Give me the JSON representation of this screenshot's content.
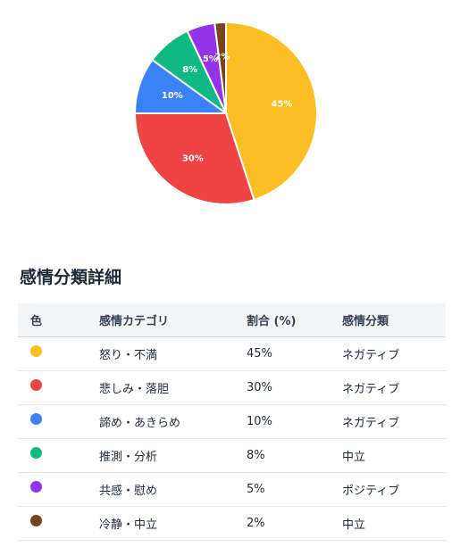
{
  "chart_data": {
    "type": "pie",
    "categories": [
      "怒り・不満",
      "悲しみ・落胆",
      "諦め・あきらめ",
      "推測・分析",
      "共感・慰め",
      "冷静・中立"
    ],
    "values": [
      45,
      30,
      10,
      8,
      5,
      2
    ],
    "labels": [
      "45%",
      "30%",
      "10%",
      "8%",
      "5%",
      "2%"
    ],
    "colors": [
      "#FBBF24",
      "#EF4444",
      "#3B82F6",
      "#10B981",
      "#9333EA",
      "#78431E"
    ]
  },
  "section": {
    "title": "感情分類詳細"
  },
  "table": {
    "headers": [
      "色",
      "感情カテゴリ",
      "割合 (%)",
      "感情分類"
    ],
    "rows": [
      {
        "category": "怒り・不満",
        "ratio": "45%",
        "class": "ネガティブ",
        "color": "#FBBF24"
      },
      {
        "category": "悲しみ・落胆",
        "ratio": "30%",
        "class": "ネガティブ",
        "color": "#EF4444"
      },
      {
        "category": "諦め・あきらめ",
        "ratio": "10%",
        "class": "ネガティブ",
        "color": "#3B82F6"
      },
      {
        "category": "推測・分析",
        "ratio": "8%",
        "class": "中立",
        "color": "#10B981"
      },
      {
        "category": "共感・慰め",
        "ratio": "5%",
        "class": "ポジティブ",
        "color": "#9333EA"
      },
      {
        "category": "冷静・中立",
        "ratio": "2%",
        "class": "中立",
        "color": "#78431E"
      }
    ]
  }
}
